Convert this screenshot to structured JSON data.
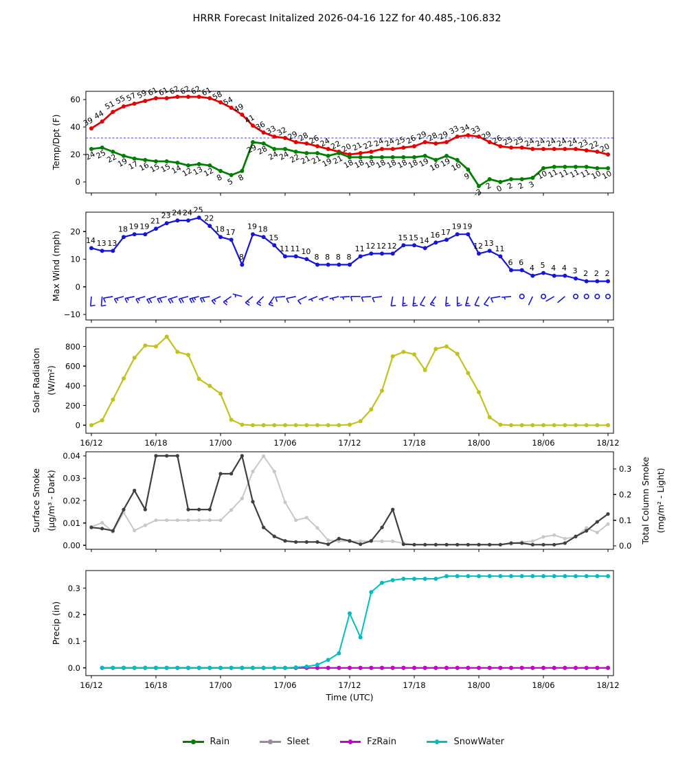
{
  "title": "HRRR Forecast Initalized 2026-04-16 12Z for 40.485,-106.832",
  "x_axis": {
    "label": "Time (UTC)",
    "tick_labels": [
      "16/12",
      "16/18",
      "17/00",
      "17/06",
      "17/12",
      "17/18",
      "18/00",
      "18/06",
      "18/12"
    ]
  },
  "legend": {
    "items": [
      {
        "label": "Rain",
        "color": "#007f00"
      },
      {
        "label": "Sleet",
        "color": "#968a9c"
      },
      {
        "label": "FzRain",
        "color": "#c303c3"
      },
      {
        "label": "SnowWater",
        "color": "#00bdc4"
      }
    ]
  },
  "chart_data": [
    {
      "id": "temp",
      "type": "line",
      "ylabel": "Temp/Dpt (F)",
      "ylim": [
        -8,
        66
      ],
      "yticks": [
        {
          "v": 0,
          "label": "0"
        },
        {
          "v": 20,
          "label": "20"
        },
        {
          "v": 40,
          "label": "40"
        },
        {
          "v": 60,
          "label": "60"
        }
      ],
      "reference_line": {
        "value": 32,
        "color": "#3333ff",
        "style": "dashed"
      },
      "series": [
        {
          "name": "Temperature",
          "color": "#e60000",
          "width": 2.8,
          "point_labels": true,
          "label_side": "above",
          "values": [
            39,
            44,
            51,
            55,
            57,
            59,
            61,
            61,
            62,
            62,
            62,
            61,
            58,
            54,
            49,
            41,
            36,
            33,
            32,
            29,
            28,
            26,
            24,
            22,
            20,
            21,
            22,
            24,
            24,
            25,
            26,
            29,
            28,
            29,
            33,
            34,
            33,
            29,
            26,
            25,
            25,
            24,
            24,
            24,
            24,
            24,
            23,
            22,
            20
          ]
        },
        {
          "name": "Dewpoint",
          "color": "#007f00",
          "width": 2.8,
          "point_labels": true,
          "label_side": "below",
          "values": [
            24,
            25,
            22,
            19,
            17,
            16,
            15,
            15,
            14,
            12,
            13,
            12,
            8,
            5,
            8,
            29,
            28,
            24,
            24,
            22,
            21,
            21,
            19,
            21,
            18,
            18,
            18,
            18,
            18,
            18,
            18,
            19,
            16,
            19,
            16,
            9,
            -3,
            2,
            0,
            2,
            2,
            3,
            10,
            11,
            11,
            11,
            11,
            10,
            10
          ]
        }
      ]
    },
    {
      "id": "wind",
      "type": "line",
      "ylabel": "Max Wind (mph)",
      "ylim": [
        -12,
        27
      ],
      "yticks": [
        {
          "v": -10,
          "label": "−10"
        },
        {
          "v": 0,
          "label": "0"
        },
        {
          "v": 10,
          "label": "10"
        },
        {
          "v": 20,
          "label": "20"
        }
      ],
      "series": [
        {
          "name": "Max Wind",
          "color": "#1414dd",
          "width": 2.2,
          "point_labels": true,
          "label_side": "above",
          "values": [
            14,
            13,
            13,
            18,
            19,
            19,
            21,
            23,
            24,
            24,
            25,
            22,
            18,
            17,
            8,
            19,
            18,
            15,
            11,
            11,
            10,
            8,
            8,
            8,
            8,
            11,
            12,
            12,
            12,
            15,
            15,
            14,
            16,
            17,
            19,
            19,
            12,
            13,
            11,
            6,
            6,
            4,
            5,
            4,
            4,
            3,
            2,
            2,
            2
          ]
        }
      ],
      "barbs": {
        "row_value": -3.5,
        "angles": [
          95,
          95,
          170,
          165,
          168,
          164,
          162,
          166,
          163,
          165,
          166,
          170,
          155,
          145,
          195,
          140,
          135,
          125,
          175,
          168,
          155,
          158,
          162,
          166,
          176,
          180,
          176,
          172,
          100,
          95,
          98,
          120,
          125,
          95,
          90,
          105,
          115,
          125,
          170,
          175,
          null,
          115,
          null,
          150,
          140,
          null,
          null,
          null,
          null
        ]
      }
    },
    {
      "id": "solar",
      "type": "line",
      "ylabel": "Solar Radiation",
      "ylabel2": "(W/m²)",
      "ylim": [
        -82,
        993
      ],
      "yticks": [
        {
          "v": 0,
          "label": "0"
        },
        {
          "v": 200,
          "label": "200"
        },
        {
          "v": 400,
          "label": "400"
        },
        {
          "v": 600,
          "label": "600"
        },
        {
          "v": 800,
          "label": "800"
        }
      ],
      "x_tick_labels_below": true,
      "series": [
        {
          "name": "Solar Radiation",
          "color": "#c2c21e",
          "width": 2.2,
          "values": [
            0,
            50,
            260,
            475,
            685,
            810,
            800,
            900,
            745,
            715,
            470,
            400,
            320,
            55,
            5,
            0,
            0,
            0,
            0,
            0,
            0,
            0,
            0,
            0,
            5,
            40,
            160,
            350,
            700,
            745,
            720,
            560,
            775,
            800,
            725,
            530,
            335,
            80,
            5,
            0,
            0,
            0,
            0,
            0,
            0,
            0,
            0,
            0,
            0
          ]
        }
      ]
    },
    {
      "id": "smoke",
      "type": "line",
      "ylabel": "Surface Smoke",
      "ylabel2": "(µg/m³ - Dark)",
      "ylim": [
        -0.00175,
        0.0418
      ],
      "yticks": [
        {
          "v": 0,
          "label": "0.00"
        },
        {
          "v": 0.01,
          "label": "0.01"
        },
        {
          "v": 0.02,
          "label": "0.02"
        },
        {
          "v": 0.03,
          "label": "0.03"
        },
        {
          "v": 0.04,
          "label": "0.04"
        }
      ],
      "ylabel_right": "Total Column Smoke",
      "ylabel_right2": "(mg/m² - Light)",
      "ylim_right": [
        -0.0134,
        0.367
      ],
      "yticks_right": [
        {
          "v": 0,
          "label": "0.0"
        },
        {
          "v": 0.1,
          "label": "0.1"
        },
        {
          "v": 0.2,
          "label": "0.2"
        },
        {
          "v": 0.3,
          "label": "0.3"
        }
      ],
      "series": [
        {
          "name": "Total Column Smoke",
          "color": "#c8c8c8",
          "width": 2,
          "axis": "right",
          "marker": 2.6,
          "values": [
            0.075,
            0.09,
            0.055,
            0.13,
            0.06,
            0.08,
            0.1,
            0.1,
            0.1,
            0.1,
            0.1,
            0.1,
            0.1,
            0.14,
            0.185,
            0.29,
            0.35,
            0.29,
            0.17,
            0.1,
            0.11,
            0.07,
            0.022,
            0.018,
            0.018,
            0.018,
            0.018,
            0.018,
            0.018,
            0.01,
            0.005,
            0.005,
            0.005,
            0.005,
            0.005,
            0.005,
            0.005,
            0.005,
            0.005,
            0.008,
            0.015,
            0.018,
            0.035,
            0.042,
            0.028,
            0.035,
            0.07,
            0.052,
            0.085
          ]
        },
        {
          "name": "Surface Smoke",
          "color": "#3f3f3f",
          "width": 2.2,
          "axis": "left",
          "marker": 2.6,
          "values": [
            0.008,
            0.0075,
            0.0065,
            0.016,
            0.0245,
            0.016,
            0.04,
            0.04,
            0.04,
            0.016,
            0.016,
            0.016,
            0.032,
            0.032,
            0.04,
            0.0195,
            0.008,
            0.004,
            0.002,
            0.0015,
            0.0015,
            0.0015,
            0.0005,
            0.003,
            0.002,
            0.0005,
            0.002,
            0.008,
            0.016,
            0.0005,
            0.0003,
            0.0003,
            0.0003,
            0.0003,
            0.0003,
            0.0003,
            0.0003,
            0.0003,
            0.0003,
            0.001,
            0.001,
            0.0003,
            0.0003,
            0.0003,
            0.001,
            0.004,
            0.0065,
            0.0105,
            0.014
          ]
        }
      ]
    },
    {
      "id": "precip",
      "type": "line",
      "ylabel": "Precip (in)",
      "ylim": [
        -0.029,
        0.366
      ],
      "yticks": [
        {
          "v": 0,
          "label": "0.0"
        },
        {
          "v": 0.1,
          "label": "0.1"
        },
        {
          "v": 0.2,
          "label": "0.2"
        },
        {
          "v": 0.3,
          "label": "0.3"
        }
      ],
      "x_tick_labels_below": true,
      "xlabel_below": true,
      "start_hour": 1,
      "series": [
        {
          "name": "Rain",
          "color": "#007f00",
          "width": 2,
          "values": [
            0,
            0,
            0,
            0,
            0,
            0,
            0,
            0,
            0,
            0,
            0,
            0,
            0,
            0,
            0,
            0,
            0,
            0,
            0,
            0,
            0,
            0,
            0,
            0,
            0,
            0,
            0,
            0,
            0,
            0,
            0,
            0,
            0,
            0,
            0,
            0,
            0,
            0,
            0,
            0,
            0,
            0,
            0,
            0,
            0,
            0,
            0,
            0
          ]
        },
        {
          "name": "Sleet",
          "color": "#968a9c",
          "width": 2,
          "values": [
            0,
            0,
            0,
            0,
            0,
            0,
            0,
            0,
            0,
            0,
            0,
            0,
            0,
            0,
            0,
            0,
            0,
            0,
            0,
            0,
            0,
            0,
            0,
            0,
            0,
            0,
            0,
            0,
            0,
            0,
            0,
            0,
            0,
            0,
            0,
            0,
            0,
            0,
            0,
            0,
            0,
            0,
            0,
            0,
            0,
            0,
            0,
            0
          ]
        },
        {
          "name": "FzRain",
          "color": "#c303c3",
          "width": 2,
          "values": [
            0,
            0,
            0,
            0,
            0,
            0,
            0,
            0,
            0,
            0,
            0,
            0,
            0,
            0,
            0,
            0,
            0,
            0,
            0,
            0,
            0,
            0,
            0,
            0,
            0,
            0,
            0,
            0,
            0,
            0,
            0,
            0,
            0,
            0,
            0,
            0,
            0,
            0,
            0,
            0,
            0,
            0,
            0,
            0,
            0,
            0,
            0,
            0
          ]
        },
        {
          "name": "SnowWater",
          "color": "#00bdc4",
          "width": 2,
          "values": [
            0,
            0,
            0,
            0,
            0,
            0,
            0,
            0,
            0,
            0,
            0,
            0,
            0,
            0,
            0,
            0,
            0,
            0,
            0.002,
            0.005,
            0.012,
            0.03,
            0.055,
            0.205,
            0.115,
            0.285,
            0.32,
            0.33,
            0.335,
            0.335,
            0.335,
            0.335,
            0.345,
            0.345,
            0.345,
            0.345,
            0.345,
            0.345,
            0.345,
            0.345,
            0.345,
            0.345,
            0.345,
            0.345,
            0.345,
            0.345,
            0.345,
            0.345
          ]
        }
      ]
    }
  ]
}
